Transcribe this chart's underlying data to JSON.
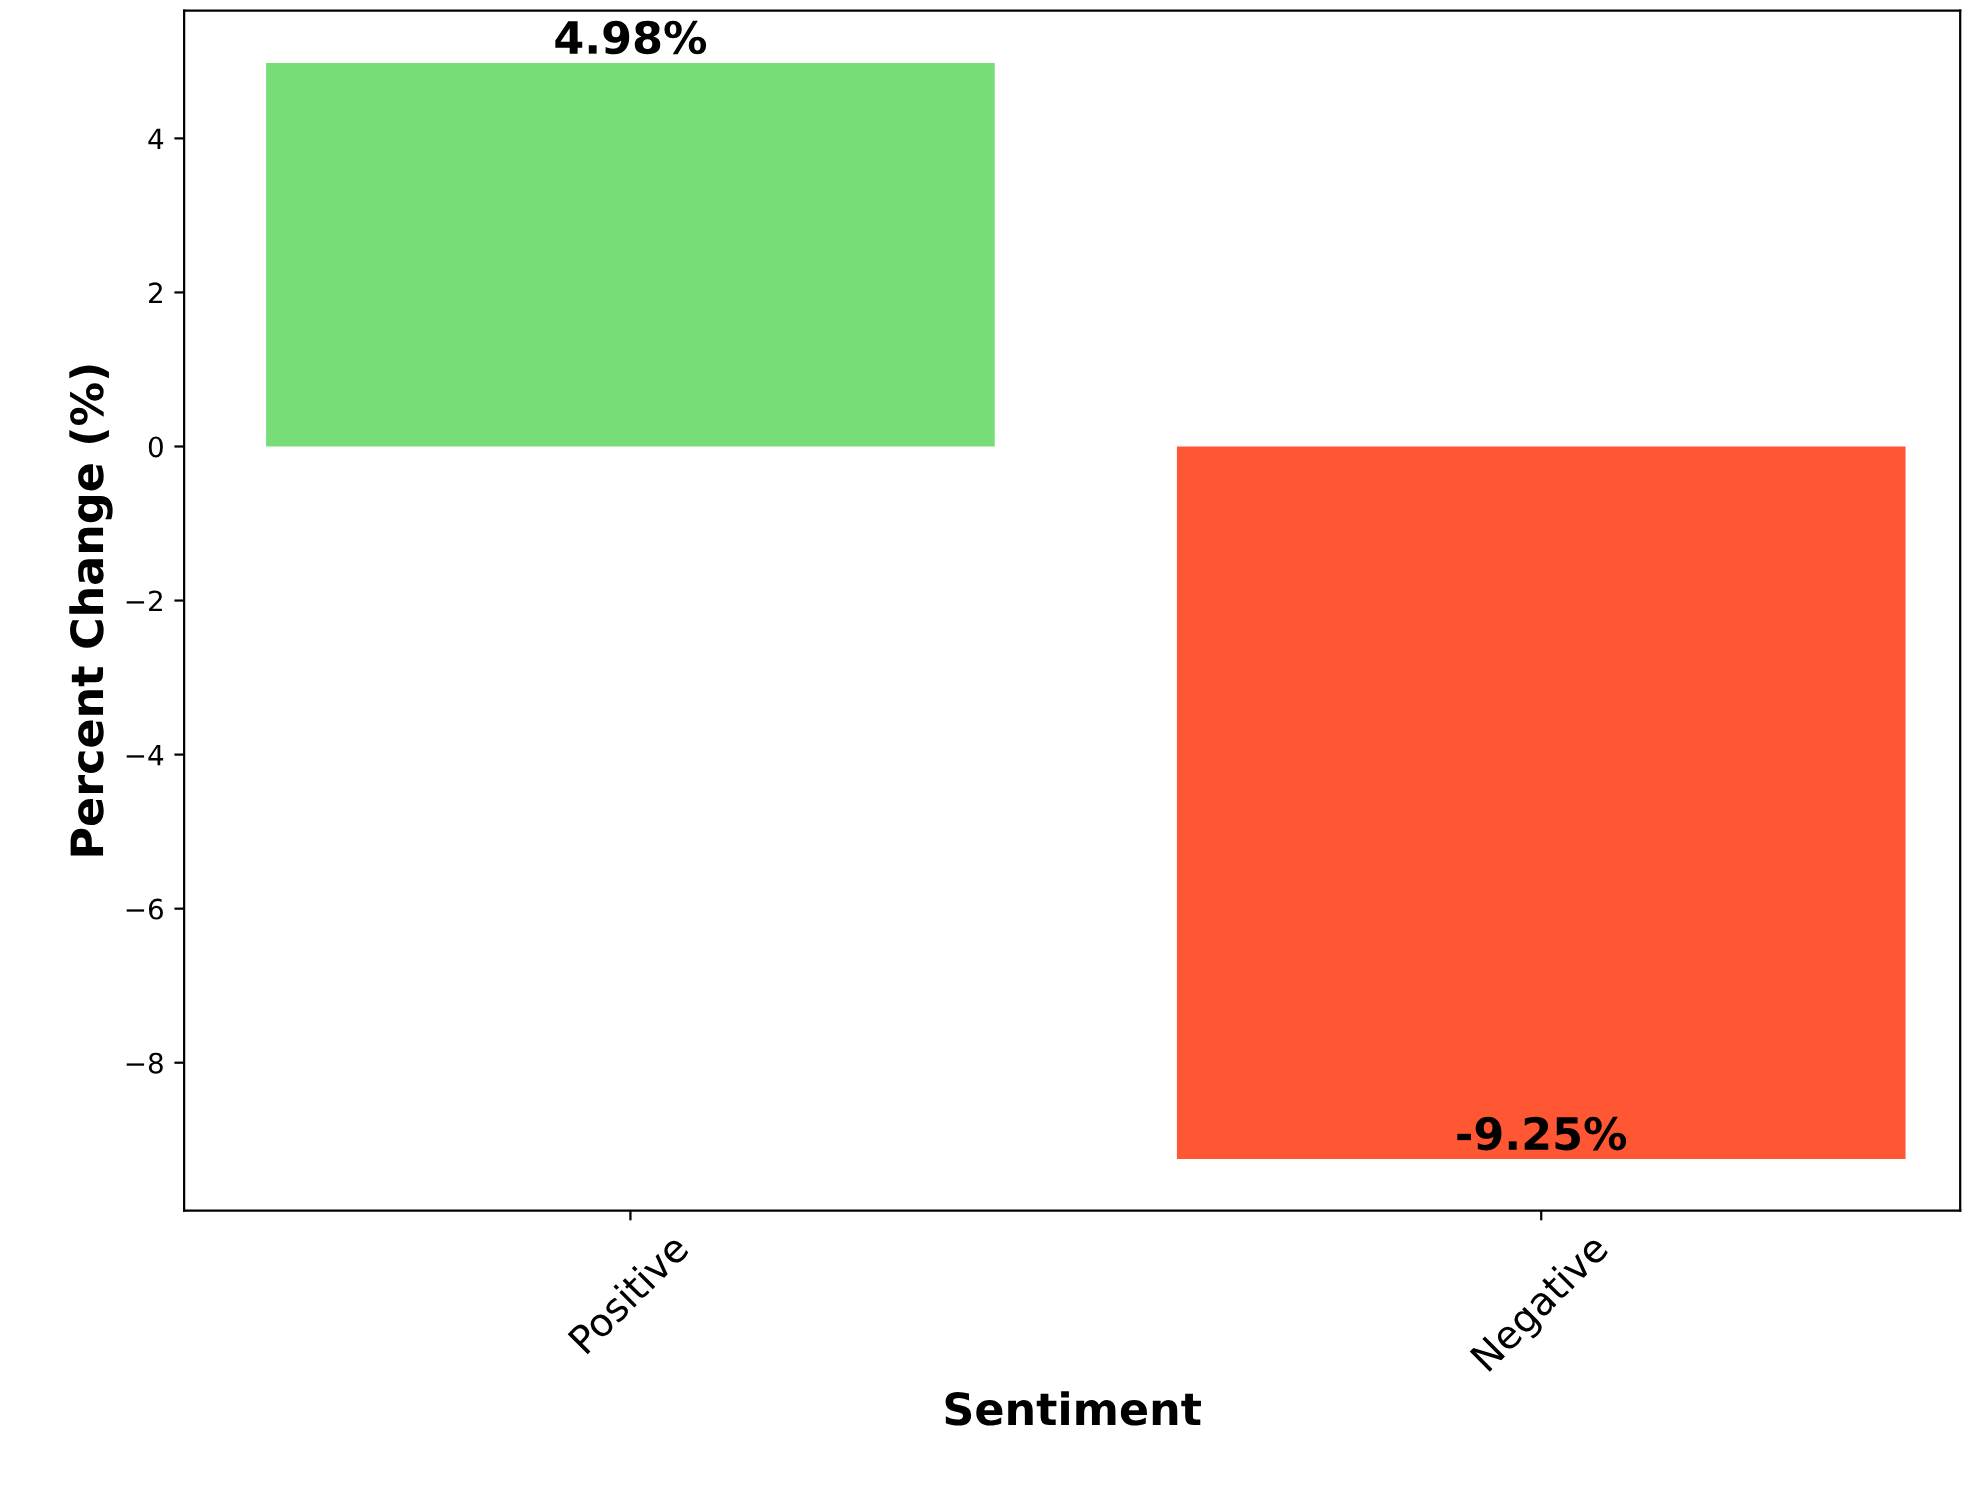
{
  "chart_data": {
    "type": "bar",
    "xlabel": "Sentiment",
    "ylabel": "Percent Change (%)",
    "categories": [
      "Positive",
      "Negative"
    ],
    "values": [
      4.98,
      -9.25
    ],
    "colors": [
      "#77dd77",
      "#ff5733"
    ],
    "value_labels": [
      "4.98%",
      "-9.25%"
    ],
    "ylim": [
      -9.92,
      5.66
    ],
    "yticks": [
      {
        "value": -8,
        "label": "−8"
      },
      {
        "value": -6,
        "label": "−6"
      },
      {
        "value": -4,
        "label": "−4"
      },
      {
        "value": -2,
        "label": "−2"
      },
      0,
      2,
      4
    ],
    "grid": false,
    "legend": false
  }
}
